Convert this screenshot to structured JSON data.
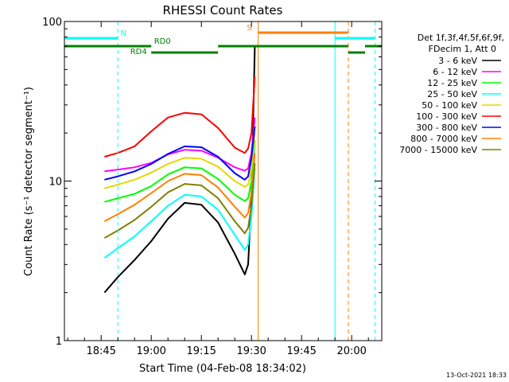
{
  "chart_data": {
    "type": "line",
    "title": "RHESSI Count Rates",
    "xlabel": "Start Time (04-Feb-08 18:34:02)",
    "ylabel": "Count Rate (s⁻¹ detector segment⁻¹)",
    "yscale": "log",
    "ylim": [
      1,
      100
    ],
    "xlim": [
      "18:34",
      "20:09"
    ],
    "x_ticks": [
      "18:45",
      "19:00",
      "19:15",
      "19:30",
      "19:45",
      "20:00"
    ],
    "y_ticks": [
      "1",
      "10",
      "100"
    ],
    "legend_header": [
      "Det 1f,3f,4f,5f,6f,9f,",
      "FDecim 1, Att 0"
    ],
    "legend_position": "right",
    "series": [
      {
        "name": "3 - 6 keV",
        "color": "#000000",
        "x": [
          "18:46",
          "18:50",
          "18:55",
          "19:00",
          "19:05",
          "19:10",
          "19:15",
          "19:20",
          "19:25",
          "19:28",
          "19:29",
          "19:30",
          "19:31"
        ],
        "y": [
          2.0,
          2.5,
          3.2,
          4.2,
          5.8,
          7.3,
          7.1,
          5.5,
          3.5,
          2.6,
          3.0,
          8.0,
          70
        ]
      },
      {
        "name": "6 - 12 keV",
        "color": "#ff00ff",
        "x": [
          "18:46",
          "18:50",
          "18:55",
          "19:00",
          "19:05",
          "19:10",
          "19:15",
          "19:20",
          "19:25",
          "19:28",
          "19:29",
          "19:30",
          "19:31"
        ],
        "y": [
          11.5,
          11.8,
          12.2,
          13.0,
          14.7,
          15.7,
          15.5,
          14.0,
          12.2,
          11.6,
          12.0,
          15.0,
          25
        ]
      },
      {
        "name": "12 - 25 keV",
        "color": "#00ff00",
        "x": [
          "18:46",
          "18:50",
          "18:55",
          "19:00",
          "19:05",
          "19:10",
          "19:15",
          "19:20",
          "19:25",
          "19:28",
          "19:29",
          "19:30",
          "19:31"
        ],
        "y": [
          7.4,
          7.8,
          8.3,
          9.3,
          11.0,
          12.2,
          12.0,
          10.3,
          8.2,
          7.5,
          7.8,
          10.0,
          18
        ]
      },
      {
        "name": "25 - 50 keV",
        "color": "#00ffff",
        "x": [
          "18:46",
          "18:50",
          "18:55",
          "19:00",
          "19:05",
          "19:10",
          "19:15",
          "19:20",
          "19:25",
          "19:28",
          "19:29",
          "19:30",
          "19:31"
        ],
        "y": [
          3.3,
          3.8,
          4.5,
          5.6,
          7.0,
          8.2,
          8.0,
          6.6,
          4.6,
          3.7,
          4.0,
          6.0,
          12
        ]
      },
      {
        "name": "50 - 100 keV",
        "color": "#e6d800",
        "x": [
          "18:46",
          "18:50",
          "18:55",
          "19:00",
          "19:05",
          "19:10",
          "19:15",
          "19:20",
          "19:25",
          "19:28",
          "19:29",
          "19:30",
          "19:31"
        ],
        "y": [
          9.0,
          9.5,
          10.2,
          11.3,
          12.8,
          14.0,
          13.8,
          12.3,
          10.0,
          9.2,
          9.5,
          12.0,
          20
        ]
      },
      {
        "name": "100 - 300 keV",
        "color": "#ff0000",
        "x": [
          "18:46",
          "18:50",
          "18:55",
          "19:00",
          "19:05",
          "19:10",
          "19:15",
          "19:20",
          "19:25",
          "19:28",
          "19:29",
          "19:30",
          "19:31"
        ],
        "y": [
          14.2,
          15.0,
          16.5,
          20.5,
          25.0,
          26.8,
          26.2,
          21.5,
          16.2,
          15.0,
          16.0,
          20.0,
          45
        ]
      },
      {
        "name": "300 - 800 keV",
        "color": "#0000ff",
        "x": [
          "18:46",
          "18:50",
          "18:55",
          "19:00",
          "19:05",
          "19:10",
          "19:15",
          "19:20",
          "19:25",
          "19:28",
          "19:29",
          "19:30",
          "19:31"
        ],
        "y": [
          10.2,
          10.7,
          11.5,
          12.8,
          14.8,
          16.5,
          16.3,
          14.2,
          11.2,
          10.2,
          10.7,
          14.0,
          22
        ]
      },
      {
        "name": "800 - 7000 keV",
        "color": "#ff8000",
        "x": [
          "18:46",
          "18:50",
          "18:55",
          "19:00",
          "19:05",
          "19:10",
          "19:15",
          "19:20",
          "19:25",
          "19:28",
          "19:29",
          "19:30",
          "19:31"
        ],
        "y": [
          5.6,
          6.2,
          7.1,
          8.4,
          10.0,
          11.1,
          10.9,
          9.1,
          6.9,
          5.9,
          6.3,
          8.5,
          15
        ]
      },
      {
        "name": "7000 - 15000 keV",
        "color": "#808000",
        "x": [
          "18:46",
          "18:50",
          "18:55",
          "19:00",
          "19:05",
          "19:10",
          "19:15",
          "19:20",
          "19:25",
          "19:28",
          "19:29",
          "19:30",
          "19:31"
        ],
        "y": [
          4.4,
          4.9,
          5.7,
          6.9,
          8.5,
          9.6,
          9.4,
          7.8,
          5.6,
          4.7,
          5.1,
          7.0,
          13
        ]
      }
    ],
    "vertical_lines": [
      {
        "x": "18:34",
        "style": "solid",
        "color": "#00ffff"
      },
      {
        "x": "18:50",
        "style": "dashed",
        "color": "#00ffff"
      },
      {
        "x": "19:32",
        "style": "solid",
        "color": "#ff8000"
      },
      {
        "x": "19:55",
        "style": "solid",
        "color": "#00ffff"
      },
      {
        "x": "19:59",
        "style": "dashed",
        "color": "#ff8000"
      },
      {
        "x": "20:07",
        "style": "dashed",
        "color": "#00ffff"
      }
    ],
    "annotations": [
      {
        "label": "N",
        "color": "#00ffff",
        "segments": [
          [
            "18:34",
            "18:50"
          ],
          [
            "19:55",
            "20:07"
          ]
        ]
      },
      {
        "label": "S",
        "color": "#ff8000",
        "segments": [
          [
            "19:32",
            "19:59"
          ]
        ]
      },
      {
        "label": "RD0",
        "color": "#008000",
        "segments": [
          [
            "18:34",
            "19:00"
          ],
          [
            "19:20",
            "19:59"
          ],
          [
            "20:04",
            "20:09"
          ]
        ]
      },
      {
        "label": "RD4",
        "color": "#008000",
        "segments": [
          [
            "19:00",
            "19:20"
          ],
          [
            "19:59",
            "20:04"
          ]
        ]
      }
    ]
  },
  "footer": {
    "timestamp": "13-Oct-2021 18:33"
  }
}
